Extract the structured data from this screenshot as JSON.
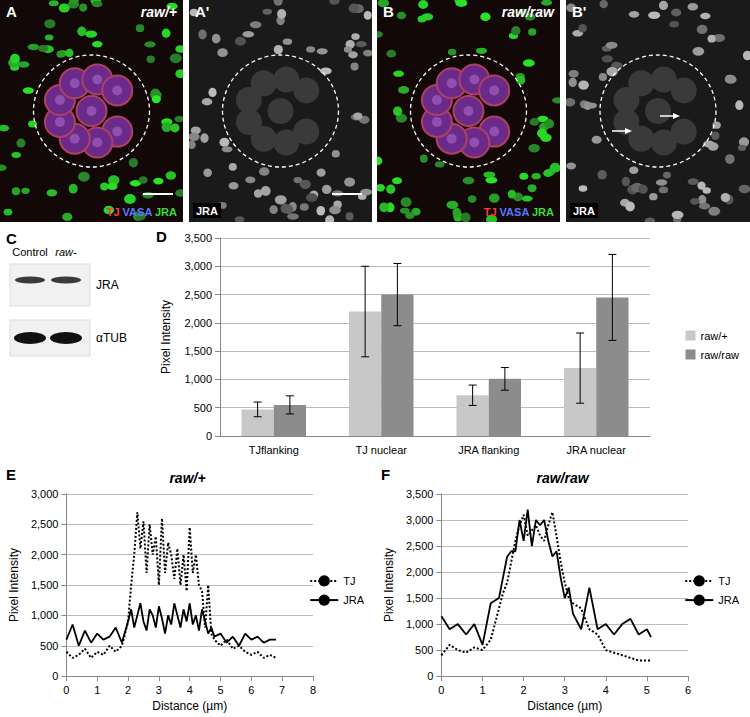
{
  "panels": {
    "A": {
      "letter": "A",
      "title": "raw/+",
      "channels": [
        "TJ",
        "VASA",
        "JRA"
      ]
    },
    "A_prime": {
      "letter": "A'",
      "channels": [
        "JRA"
      ]
    },
    "B": {
      "letter": "B",
      "title": "raw/raw",
      "channels": [
        "TJ",
        "VASA",
        "JRA"
      ]
    },
    "B_prime": {
      "letter": "B'",
      "channels": [
        "JRA"
      ]
    },
    "C": {
      "letter": "C",
      "lanes": [
        "Control",
        "raw-"
      ],
      "bands": [
        "JRA",
        "αTUB"
      ]
    }
  },
  "chart_data": [
    {
      "type": "bar",
      "annotations": [
        "D"
      ],
      "y_label": "Pixel Intensity",
      "categories": [
        "TJflanking",
        "TJ nuclear",
        "JRA flanking",
        "JRA nuclear"
      ],
      "series": [
        {
          "name": "raw/+",
          "color": "#c8c8c8",
          "values": [
            470,
            2200,
            720,
            1200
          ],
          "errors": [
            130,
            800,
            180,
            620
          ]
        },
        {
          "name": "raw/raw",
          "color": "#8c8c8c",
          "values": [
            550,
            2500,
            1010,
            2450
          ],
          "errors": [
            160,
            550,
            200,
            760
          ]
        }
      ],
      "ylim": [
        0,
        3500
      ],
      "yticks": [
        0,
        500,
        1000,
        1500,
        2000,
        2500,
        3000,
        3500
      ],
      "grid": true,
      "legend": "right"
    },
    {
      "type": "line",
      "annotations": [
        "E"
      ],
      "title": "raw/+",
      "x_label": "Distance (µm)",
      "y_label": "Pixel Intensity",
      "series": [
        {
          "name": "TJ",
          "color": "#000000",
          "line_style": "dotted",
          "x": [
            0,
            0.2,
            0.4,
            0.6,
            0.8,
            1.0,
            1.2,
            1.4,
            1.6,
            1.8,
            2.0,
            2.1,
            2.2,
            2.3,
            2.4,
            2.5,
            2.6,
            2.7,
            2.8,
            2.9,
            3.0,
            3.1,
            3.2,
            3.3,
            3.4,
            3.5,
            3.6,
            3.7,
            3.8,
            3.9,
            4.0,
            4.1,
            4.2,
            4.3,
            4.4,
            4.5,
            4.6,
            4.7,
            4.8,
            5.0,
            5.2,
            5.4,
            5.6,
            5.8,
            6.0,
            6.2,
            6.4,
            6.6,
            6.8
          ],
          "values": [
            400,
            300,
            350,
            450,
            300,
            400,
            350,
            500,
            400,
            500,
            900,
            1500,
            2000,
            2700,
            2100,
            2550,
            1700,
            2500,
            2000,
            2300,
            1500,
            2600,
            1700,
            2200,
            2000,
            1600,
            2100,
            1500,
            2000,
            1400,
            2450,
            1700,
            2000,
            1500,
            1400,
            800,
            1500,
            700,
            600,
            500,
            600,
            450,
            500,
            400,
            350,
            400,
            300,
            350,
            300
          ]
        },
        {
          "name": "JRA",
          "color": "#000000",
          "line_style": "solid",
          "x": [
            0,
            0.2,
            0.4,
            0.6,
            0.8,
            1.0,
            1.2,
            1.4,
            1.6,
            1.8,
            2.0,
            2.1,
            2.2,
            2.3,
            2.4,
            2.5,
            2.6,
            2.7,
            2.8,
            2.9,
            3.0,
            3.1,
            3.2,
            3.3,
            3.4,
            3.5,
            3.6,
            3.7,
            3.8,
            3.9,
            4.0,
            4.1,
            4.2,
            4.3,
            4.4,
            4.5,
            4.6,
            4.7,
            4.8,
            5.0,
            5.2,
            5.4,
            5.6,
            5.8,
            6.0,
            6.2,
            6.4,
            6.6,
            6.8
          ],
          "values": [
            600,
            850,
            500,
            750,
            550,
            700,
            600,
            650,
            800,
            550,
            900,
            1100,
            800,
            1000,
            1200,
            900,
            750,
            1100,
            1000,
            800,
            1150,
            950,
            700,
            1000,
            850,
            1200,
            1000,
            800,
            1100,
            900,
            1200,
            850,
            1000,
            750,
            1100,
            900,
            700,
            800,
            650,
            700,
            550,
            650,
            500,
            700,
            600,
            650,
            550,
            600,
            600
          ]
        }
      ],
      "xlim": [
        0,
        8
      ],
      "xticks": [
        0,
        1,
        2,
        3,
        4,
        5,
        6,
        7,
        8
      ],
      "ylim": [
        0,
        3000
      ],
      "yticks": [
        0,
        500,
        1000,
        1500,
        2000,
        2500,
        3000
      ],
      "grid": true,
      "legend": "right"
    },
    {
      "type": "line",
      "annotations": [
        "F"
      ],
      "title": "raw/raw",
      "x_label": "Distance (µm)",
      "y_label": "Pixel Intensity",
      "series": [
        {
          "name": "TJ",
          "color": "#000000",
          "line_style": "dotted",
          "x": [
            0,
            0.2,
            0.4,
            0.6,
            0.8,
            1.0,
            1.2,
            1.4,
            1.5,
            1.6,
            1.7,
            1.8,
            1.9,
            2.0,
            2.1,
            2.2,
            2.3,
            2.4,
            2.5,
            2.6,
            2.7,
            2.8,
            2.9,
            3.0,
            3.1,
            3.2,
            3.4,
            3.6,
            3.8,
            4.0,
            4.2,
            4.4,
            4.6,
            4.8,
            5.0,
            5.1
          ],
          "values": [
            400,
            600,
            500,
            450,
            550,
            500,
            700,
            1300,
            1600,
            1800,
            2200,
            2600,
            2900,
            3100,
            2700,
            2800,
            2900,
            2700,
            2600,
            2900,
            3150,
            2700,
            2200,
            1800,
            1500,
            1400,
            1300,
            900,
            800,
            500,
            450,
            400,
            350,
            300,
            300,
            300
          ]
        },
        {
          "name": "JRA",
          "color": "#000000",
          "line_style": "solid",
          "x": [
            0,
            0.2,
            0.4,
            0.6,
            0.8,
            1.0,
            1.2,
            1.4,
            1.5,
            1.6,
            1.7,
            1.8,
            1.9,
            2.0,
            2.1,
            2.2,
            2.3,
            2.4,
            2.5,
            2.6,
            2.7,
            2.8,
            2.9,
            3.0,
            3.1,
            3.2,
            3.4,
            3.6,
            3.8,
            4.0,
            4.2,
            4.4,
            4.6,
            4.8,
            5.0,
            5.1
          ],
          "values": [
            1150,
            900,
            1000,
            800,
            1000,
            600,
            1400,
            1500,
            1900,
            2300,
            2400,
            2400,
            3000,
            2600,
            3200,
            2500,
            3000,
            2900,
            3000,
            2600,
            2300,
            2400,
            1900,
            1500,
            1700,
            1200,
            900,
            1700,
            900,
            1000,
            800,
            1000,
            1100,
            800,
            900,
            750
          ]
        }
      ],
      "xlim": [
        0,
        6
      ],
      "xticks": [
        0,
        1,
        2,
        3,
        4,
        5,
        6
      ],
      "ylim": [
        0,
        3500
      ],
      "yticks": [
        0,
        500,
        1000,
        1500,
        2000,
        2500,
        3000,
        3500
      ],
      "grid": true,
      "legend": "right"
    }
  ]
}
